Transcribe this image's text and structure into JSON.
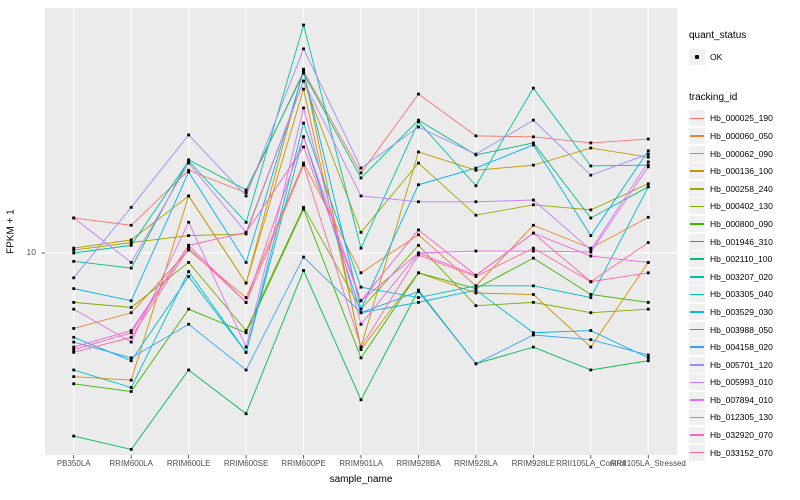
{
  "style": {
    "panel_bg": "#EBEBEB",
    "grid_color": "#FFFFFF",
    "tick_color": "#333333",
    "tick_label_color": "#4D4D4D",
    "legend_key_bg": "#F0F0F0",
    "point_color": "#000000"
  },
  "axes": {
    "x_title": "sample_name",
    "y_title": "FPKM + 1",
    "y_tick_label": "10"
  },
  "legend": {
    "quant_status": {
      "title": "quant_status",
      "items": [
        {
          "label": "OK",
          "marker": "black-point"
        }
      ]
    },
    "tracking_id": {
      "title": "tracking_id"
    }
  },
  "chart_data": {
    "type": "line",
    "title": "",
    "xlabel": "sample_name",
    "ylabel": "FPKM + 1",
    "y_scale": "log10",
    "y_tick_values": [
      10
    ],
    "grid": "on",
    "legend_position": "right",
    "point_marker": {
      "shape": "square",
      "color": "#000000",
      "size": 2.8
    },
    "quant_status_all": "OK",
    "categories": [
      "PB350LA",
      "RRIM600LA",
      "RRIM600LE",
      "RRIM600SE",
      "RRIM600PE",
      "RRIM901LA",
      "RRIM928BA",
      "RRIM928LA",
      "RRIM928LE",
      "RRII105LA_Control",
      "RRII105LA_Stressed"
    ],
    "series": [
      {
        "name": "Hb_000025_190",
        "color": "#F8766D",
        "values": [
          14.2,
          13.2,
          22.9,
          18.3,
          61.7,
          22.3,
          49.1,
          32.3,
          32.0,
          30.1,
          31.3
        ]
      },
      {
        "name": "Hb_000060_050",
        "color": "#EA8331",
        "values": [
          4.7,
          5.5,
          10.3,
          6.4,
          24.6,
          8.2,
          12.0,
          7.2,
          13.2,
          10.5,
          14.3
        ]
      },
      {
        "name": "Hb_000062_090",
        "color": "#D89000",
        "values": [
          2.9,
          2.8,
          17.7,
          7.4,
          63.0,
          3.8,
          8.2,
          6.7,
          6.6,
          3.9,
          9.1
        ]
      },
      {
        "name": "Hb_000136_100",
        "color": "#C09B00",
        "values": [
          10.5,
          11.4,
          17.7,
          7.4,
          51.6,
          3.9,
          27.5,
          22.9,
          24.1,
          28.6,
          26.1
        ]
      },
      {
        "name": "Hb_000258_240",
        "color": "#A3A500",
        "values": [
          10.3,
          11.1,
          11.9,
          12.1,
          55.9,
          12.3,
          24.6,
          14.6,
          16.2,
          15.4,
          20.0
        ]
      },
      {
        "name": "Hb_000402_130",
        "color": "#7CAE00",
        "values": [
          6.1,
          5.8,
          9.1,
          4.6,
          15.8,
          5.7,
          10.8,
          5.9,
          6.1,
          5.5,
          5.7
        ]
      },
      {
        "name": "Hb_000800_090",
        "color": "#39B600",
        "values": [
          2.7,
          2.5,
          5.7,
          4.5,
          15.5,
          3.5,
          8.2,
          7.0,
          9.5,
          6.6,
          6.1
        ]
      },
      {
        "name": "Hb_001946_310",
        "color": "#00BB4E",
        "values": [
          1.6,
          1.4,
          3.1,
          2.0,
          8.4,
          2.3,
          6.9,
          3.3,
          3.9,
          3.1,
          3.4
        ]
      },
      {
        "name": "Hb_002110_100",
        "color": "#00BF7D",
        "values": [
          9.2,
          8.6,
          25.4,
          18.8,
          60.5,
          21.2,
          37.8,
          26.7,
          30.1,
          14.2,
          19.4
        ]
      },
      {
        "name": "Hb_003207_020",
        "color": "#00C1A3",
        "values": [
          10.0,
          10.8,
          25.1,
          13.6,
          98.0,
          10.5,
          37.2,
          19.6,
          52.1,
          23.9,
          24.1
        ]
      },
      {
        "name": "Hb_003305_040",
        "color": "#00BFC4",
        "values": [
          3.1,
          2.6,
          8.3,
          3.7,
          36.7,
          7.1,
          6.4,
          7.2,
          7.2,
          6.4,
          19.4
        ]
      },
      {
        "name": "Hb_003529_030",
        "color": "#00BAE0",
        "values": [
          4.3,
          3.4,
          7.9,
          3.7,
          32.0,
          5.5,
          6.1,
          6.9,
          4.5,
          4.6,
          3.5
        ]
      },
      {
        "name": "Hb_003988_050",
        "color": "#00B0F6",
        "values": [
          7.0,
          6.2,
          22.5,
          9.1,
          61.7,
          5.7,
          19.8,
          23.4,
          29.5,
          11.9,
          27.8
        ]
      },
      {
        "name": "Hb_004158_020",
        "color": "#35A2FF",
        "values": [
          4.1,
          3.5,
          4.9,
          3.1,
          9.6,
          5.5,
          6.8,
          3.3,
          4.4,
          4.2,
          3.6
        ]
      },
      {
        "name": "Hb_005701_120",
        "color": "#9590FF",
        "values": [
          7.8,
          15.8,
          32.6,
          17.7,
          77.2,
          23.4,
          35.3,
          26.9,
          37.8,
          21.8,
          26.9
        ]
      },
      {
        "name": "Hb_005993_010",
        "color": "#C77CFF",
        "values": [
          14.2,
          9.1,
          24.6,
          12.3,
          55.9,
          17.7,
          16.7,
          16.7,
          17.0,
          10.3,
          24.9
        ]
      },
      {
        "name": "Hb_007894_010",
        "color": "#E76BF3",
        "values": [
          5.7,
          4.1,
          13.6,
          3.9,
          42.7,
          4.9,
          10.0,
          10.2,
          10.2,
          10.1,
          23.7
        ]
      },
      {
        "name": "Hb_012305_130",
        "color": "#FA62DB",
        "values": [
          3.9,
          4.6,
          10.8,
          6.1,
          32.0,
          6.2,
          10.0,
          8.0,
          12.2,
          9.7,
          9.1
        ]
      },
      {
        "name": "Hb_032920_070",
        "color": "#FF62BC",
        "values": [
          3.8,
          4.5,
          10.8,
          12.3,
          28.9,
          6.2,
          12.6,
          8.0,
          12.2,
          7.5,
          8.2
        ]
      },
      {
        "name": "Hb_033152_070",
        "color": "#FF6A98",
        "values": [
          3.7,
          4.3,
          10.5,
          6.1,
          24.1,
          3.9,
          9.8,
          7.9,
          10.5,
          7.5,
          11.1
        ]
      }
    ]
  }
}
